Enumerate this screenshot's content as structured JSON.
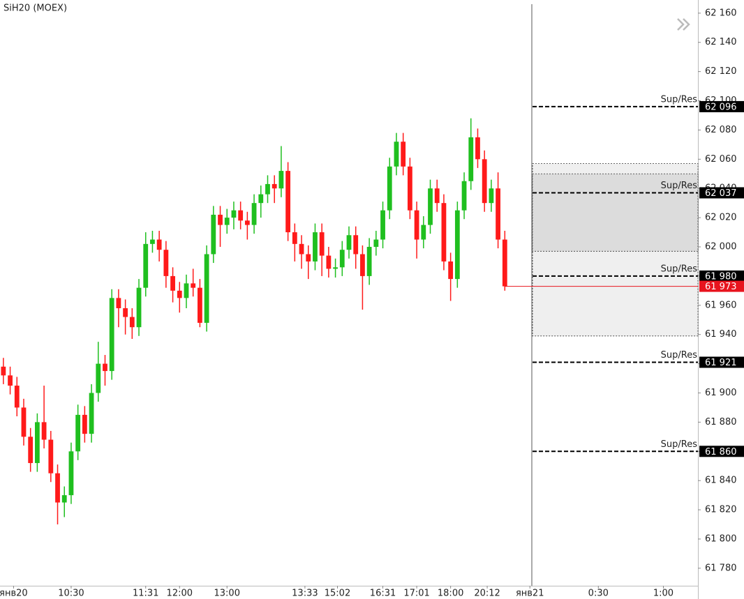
{
  "chart_data": {
    "type": "candlestick",
    "title": "SiH20 (MOEX)",
    "open": [
      61918,
      61912,
      61905,
      61890,
      61870,
      61852,
      61880,
      61868,
      61845,
      61825,
      61830,
      61860,
      61885,
      61872,
      61900,
      61920,
      61915,
      61965,
      61958,
      61952,
      61945,
      61972,
      62002,
      62005,
      61998,
      61980,
      61970,
      61965,
      61975,
      61972,
      61948,
      61995,
      62022,
      62015,
      62020,
      62025,
      62018,
      62015,
      62030,
      62036,
      62043,
      62040,
      62052,
      62010,
      62002,
      61995,
      61990,
      62010,
      61994,
      61985,
      61986,
      61998,
      62008,
      61995,
      61980,
      62000,
      62005,
      62025,
      62055,
      62072,
      62055,
      62025,
      62005,
      62015,
      62040,
      62030,
      61990,
      61978,
      62025,
      62045,
      62075,
      62060,
      62030,
      62040,
      62005
    ],
    "high": [
      61924,
      61918,
      61911,
      61896,
      61876,
      61886,
      61905,
      61874,
      61851,
      61836,
      61866,
      61892,
      61891,
      61906,
      61935,
      61926,
      61971,
      61971,
      61964,
      61958,
      61978,
      62010,
      62011,
      62011,
      62004,
      61986,
      61976,
      61981,
      61985,
      61978,
      62001,
      62028,
      62028,
      62026,
      62031,
      62031,
      62024,
      62036,
      62042,
      62049,
      62049,
      62069,
      62058,
      62016,
      62008,
      62001,
      62016,
      62016,
      62000,
      61992,
      62004,
      62014,
      62014,
      62001,
      62006,
      62011,
      62031,
      62061,
      62078,
      62078,
      62061,
      62031,
      62021,
      62046,
      62046,
      62036,
      61996,
      62031,
      62051,
      62088,
      62081,
      62066,
      62046,
      62051,
      62011
    ],
    "low": [
      61906,
      61899,
      61884,
      61864,
      61846,
      61846,
      61862,
      61839,
      61810,
      61815,
      61824,
      61854,
      61866,
      61866,
      61894,
      61905,
      61909,
      61945,
      61940,
      61937,
      61939,
      61966,
      61996,
      61990,
      61972,
      61962,
      61955,
      61958,
      61966,
      61945,
      61942,
      61989,
      62000,
      62009,
      62012,
      62012,
      62005,
      62009,
      62020,
      62030,
      62030,
      62034,
      62004,
      61990,
      61985,
      61978,
      61984,
      61980,
      61979,
      61979,
      61980,
      61992,
      61985,
      61957,
      61974,
      61994,
      61999,
      62019,
      62049,
      62049,
      62019,
      61992,
      61999,
      62009,
      62024,
      61984,
      61963,
      61972,
      62019,
      62039,
      62054,
      62024,
      62024,
      61999,
      61970
    ],
    "close": [
      61912,
      61905,
      61890,
      61870,
      61852,
      61880,
      61868,
      61845,
      61825,
      61830,
      61860,
      61885,
      61872,
      61900,
      61920,
      61915,
      61965,
      61958,
      61952,
      61945,
      61972,
      62002,
      62005,
      61998,
      61980,
      61970,
      61965,
      61975,
      61972,
      61948,
      61995,
      62022,
      62015,
      62020,
      62025,
      62018,
      62015,
      62030,
      62036,
      62043,
      62040,
      62052,
      62010,
      62002,
      61995,
      61990,
      62010,
      61994,
      61985,
      61986,
      61998,
      62008,
      61995,
      61980,
      62000,
      62005,
      62025,
      62055,
      62072,
      62055,
      62025,
      62005,
      62015,
      62040,
      62030,
      61990,
      61978,
      62025,
      62045,
      62075,
      62060,
      62030,
      62040,
      62005,
      61973
    ],
    "up_color": "#1fbf1f",
    "down_color": "#ff1a1a",
    "ylim": [
      61768,
      62169
    ],
    "yticks": [
      {
        "value": 62160,
        "label": "62 160"
      },
      {
        "value": 62140,
        "label": "62 140"
      },
      {
        "value": 62120,
        "label": "62 120"
      },
      {
        "value": 62100,
        "label": "62 100"
      },
      {
        "value": 62080,
        "label": "62 080"
      },
      {
        "value": 62060,
        "label": "62 060"
      },
      {
        "value": 62040,
        "label": "62 040"
      },
      {
        "value": 62020,
        "label": "62 020"
      },
      {
        "value": 62000,
        "label": "62 000"
      },
      {
        "value": 61980,
        "label": "61 980"
      },
      {
        "value": 61960,
        "label": "61 960"
      },
      {
        "value": 61940,
        "label": "61 940"
      },
      {
        "value": 61920,
        "label": "61 920"
      },
      {
        "value": 61900,
        "label": "61 900"
      },
      {
        "value": 61880,
        "label": "61 880"
      },
      {
        "value": 61860,
        "label": "61 860"
      },
      {
        "value": 61840,
        "label": "61 840"
      },
      {
        "value": 61820,
        "label": "61 820"
      },
      {
        "value": 61800,
        "label": "61 800"
      },
      {
        "value": 61780,
        "label": "61 780"
      }
    ],
    "xlim": [
      -0.5,
      102.5
    ],
    "xticks": [
      {
        "value": 1.5,
        "label": "янв20"
      },
      {
        "value": 10,
        "label": "10:30"
      },
      {
        "value": 21,
        "label": "11:31"
      },
      {
        "value": 26,
        "label": "12:00"
      },
      {
        "value": 33,
        "label": "13:00"
      },
      {
        "value": 44.5,
        "label": "13:33"
      },
      {
        "value": 49.3,
        "label": "15:02"
      },
      {
        "value": 56,
        "label": "16:31"
      },
      {
        "value": 61,
        "label": "17:01"
      },
      {
        "value": 66,
        "label": "18:00"
      },
      {
        "value": 71.4,
        "label": "20:12"
      },
      {
        "value": 77.7,
        "label": "янв21"
      },
      {
        "value": 87.8,
        "label": "0:30"
      },
      {
        "value": 97.4,
        "label": "1:00"
      }
    ],
    "levels": [
      {
        "name": "Sup/Res",
        "value": 62096,
        "label": "62 096"
      },
      {
        "name": "Sup/Res",
        "value": 62037,
        "label": "62 037"
      },
      {
        "name": "Sup/Res",
        "value": 61980,
        "label": "61 980"
      },
      {
        "name": "Sup/Res",
        "value": 61921,
        "label": "61 921"
      },
      {
        "name": "Sup/Res",
        "value": 61860,
        "label": "61 860"
      }
    ],
    "last": {
      "value": 61973,
      "label": "61 973",
      "color": "#e8141e"
    },
    "zones": [
      {
        "top": 62057,
        "bottom": 61939,
        "color": "#efefef"
      },
      {
        "top": 62050,
        "bottom": 61997,
        "color": "#dcdcdc"
      }
    ]
  }
}
